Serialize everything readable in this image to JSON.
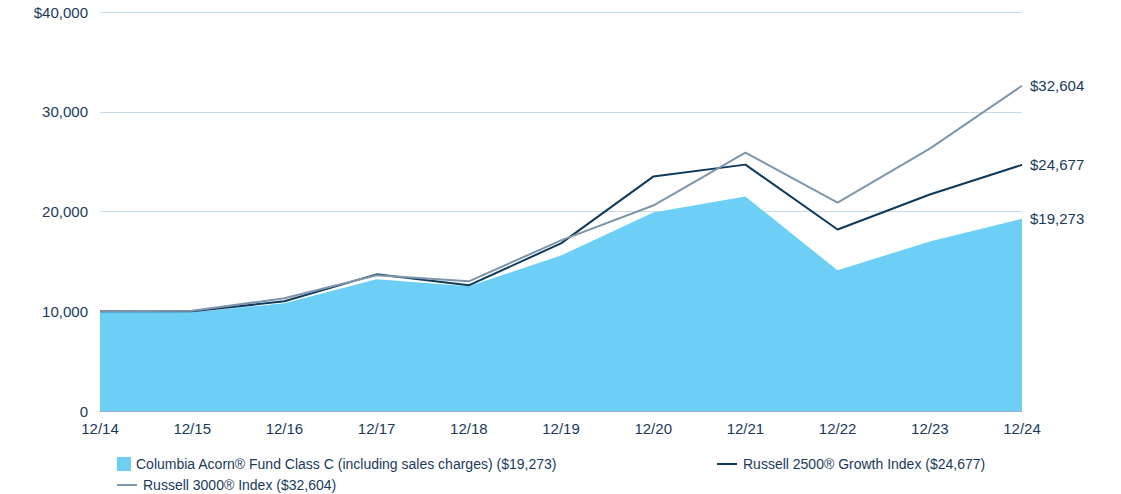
{
  "chart_data": {
    "type": "line",
    "categories": [
      "12/14",
      "12/15",
      "12/16",
      "12/17",
      "12/18",
      "12/19",
      "12/20",
      "12/21",
      "12/22",
      "12/23",
      "12/24"
    ],
    "series": [
      {
        "name": "Columbia Acorn® Fund Class C (including sales charges) ($19,273)",
        "type": "area",
        "color": "#6dcff6",
        "values": [
          10000,
          9900,
          10800,
          13200,
          12500,
          15600,
          19900,
          21500,
          14100,
          17000,
          19273
        ],
        "value_labels": [
          null,
          null,
          null,
          null,
          null,
          null,
          null,
          null,
          null,
          null,
          "$19,273"
        ]
      },
      {
        "name": "Russell 2500® Growth Index ($24,677)",
        "type": "line",
        "color": "#0d3a5c",
        "values": [
          10000,
          9990,
          11000,
          13700,
          12600,
          16800,
          23500,
          24700,
          18200,
          21700,
          24677
        ],
        "value_labels": [
          null,
          null,
          null,
          null,
          null,
          null,
          null,
          null,
          null,
          null,
          "$24,677"
        ]
      },
      {
        "name": "Russell 3000® Index ($32,604)",
        "type": "line",
        "color": "#7f95ab",
        "values": [
          10000,
          10050,
          11300,
          13600,
          13000,
          17100,
          20600,
          25900,
          20900,
          26300,
          32604
        ],
        "value_labels": [
          null,
          null,
          null,
          null,
          null,
          null,
          null,
          null,
          null,
          null,
          "$32,604"
        ]
      }
    ],
    "ylim": [
      0,
      40000
    ],
    "yticks": [
      0,
      {
        "value": 10000,
        "label": "10,000"
      },
      {
        "value": 20000,
        "label": "20,000"
      },
      {
        "value": 30000,
        "label": "30,000"
      },
      {
        "value": 40000,
        "label": "$40,000"
      }
    ],
    "grid": true,
    "legend": "bottom"
  }
}
